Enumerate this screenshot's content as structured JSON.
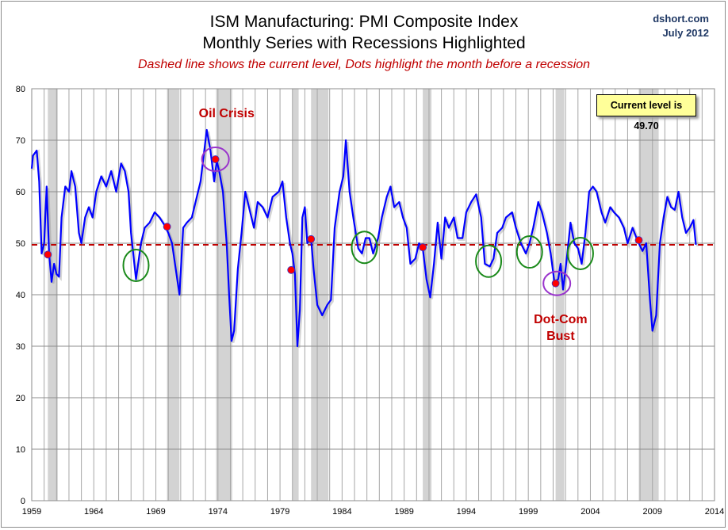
{
  "header": {
    "title": "ISM Manufacturing: PMI Composite Index",
    "subtitle": "Monthly Series with Recessions Highlighted",
    "note": "Dashed line shows the current level, Dots highlight the month before a recession",
    "source": "dshort.com",
    "date": "July 2012"
  },
  "chart_data": {
    "type": "line",
    "title": "ISM Manufacturing: PMI Composite Index",
    "xlim": [
      1959,
      2014
    ],
    "ylim": [
      0,
      80
    ],
    "x_ticks": [
      "1959",
      "1964",
      "1969",
      "1974",
      "1979",
      "1984",
      "1989",
      "1994",
      "1999",
      "2004",
      "2009",
      "2014"
    ],
    "y_ticks": [
      "0",
      "10",
      "20",
      "30",
      "40",
      "50",
      "60",
      "70",
      "80"
    ],
    "grid": true,
    "line_color": "#0000ff",
    "current_level": 49.7,
    "current_level_label": "Current level is 49.70",
    "current_line_color": "#c00000",
    "recession_color": "#d3d3d3",
    "recessions": [
      [
        1960.3,
        1961.1
      ],
      [
        1969.9,
        1970.9
      ],
      [
        1973.85,
        1975.15
      ],
      [
        1980.0,
        1980.5
      ],
      [
        1981.5,
        1982.9
      ],
      [
        1990.5,
        1991.2
      ],
      [
        2001.2,
        2001.9
      ],
      [
        2007.9,
        2009.5
      ]
    ],
    "series": [
      {
        "x": [
          1959.0,
          1959.1,
          1959.4,
          1959.6,
          1959.8,
          1960.0,
          1960.2,
          1960.4,
          1960.6,
          1960.8,
          1961.0,
          1961.2,
          1961.4,
          1961.7,
          1962.0,
          1962.2,
          1962.5,
          1962.8,
          1963.0,
          1963.3,
          1963.6,
          1963.9,
          1964.2,
          1964.6,
          1965.0,
          1965.4,
          1965.8,
          1966.2,
          1966.5,
          1966.8,
          1967.0,
          1967.4,
          1967.8,
          1968.1,
          1968.5,
          1968.9,
          1969.3,
          1969.7,
          1970.0,
          1970.3,
          1970.6,
          1970.9,
          1971.2,
          1971.5,
          1971.9,
          1972.2,
          1972.6,
          1972.9,
          1973.1,
          1973.4,
          1973.7,
          1973.9,
          1974.1,
          1974.4,
          1974.7,
          1974.9,
          1975.1,
          1975.3,
          1975.6,
          1975.9,
          1976.2,
          1976.6,
          1976.9,
          1977.2,
          1977.6,
          1978.0,
          1978.4,
          1978.9,
          1979.2,
          1979.5,
          1979.8,
          1980.0,
          1980.2,
          1980.4,
          1980.6,
          1980.8,
          1981.0,
          1981.2,
          1981.5,
          1981.7,
          1982.0,
          1982.4,
          1982.8,
          1983.1,
          1983.4,
          1983.8,
          1984.1,
          1984.3,
          1984.6,
          1984.9,
          1985.3,
          1985.6,
          1985.9,
          1986.2,
          1986.5,
          1986.9,
          1987.2,
          1987.6,
          1987.9,
          1988.2,
          1988.6,
          1988.9,
          1989.2,
          1989.5,
          1989.9,
          1990.2,
          1990.5,
          1990.8,
          1991.1,
          1991.4,
          1991.7,
          1992.0,
          1992.3,
          1992.6,
          1993.0,
          1993.3,
          1993.7,
          1994.0,
          1994.4,
          1994.8,
          1995.2,
          1995.5,
          1995.9,
          1996.2,
          1996.5,
          1996.9,
          1997.2,
          1997.7,
          1998.0,
          1998.4,
          1998.8,
          1999.1,
          1999.4,
          1999.8,
          2000.1,
          2000.5,
          2000.8,
          2001.1,
          2001.4,
          2001.6,
          2001.8,
          2002.1,
          2002.4,
          2002.7,
          2003.0,
          2003.3,
          2003.6,
          2003.9,
          2004.2,
          2004.5,
          2004.9,
          2005.2,
          2005.6,
          2005.9,
          2006.3,
          2006.7,
          2007.0,
          2007.4,
          2007.8,
          2008.2,
          2008.5,
          2008.8,
          2009.0,
          2009.3,
          2009.6,
          2009.9,
          2010.2,
          2010.5,
          2010.8,
          2011.1,
          2011.4,
          2011.7,
          2012.0,
          2012.3,
          2012.5
        ],
        "y": [
          64.5,
          67,
          68,
          62,
          48,
          50,
          61,
          48,
          42.5,
          46,
          44,
          43.5,
          55,
          61,
          60,
          64,
          61,
          52,
          50,
          55,
          57,
          55,
          60,
          63,
          61,
          64,
          60,
          65.5,
          64,
          60,
          52,
          43,
          50,
          53,
          54,
          56,
          55,
          53.5,
          52,
          50,
          45,
          40,
          53,
          54,
          55,
          58,
          62,
          68,
          72,
          68,
          62,
          66,
          64,
          60,
          50,
          40,
          31,
          33,
          45,
          52,
          60,
          56,
          53,
          58,
          57,
          55,
          59,
          60,
          62,
          55,
          50,
          48,
          44,
          30,
          37,
          55,
          57,
          50,
          51,
          45,
          38,
          36,
          38,
          39,
          53,
          60,
          63,
          70,
          60,
          55,
          49,
          48,
          51,
          51,
          48,
          51,
          55,
          59,
          61,
          57,
          58,
          55,
          53,
          46,
          47,
          50,
          49,
          43,
          39.5,
          46,
          54,
          47,
          55,
          53,
          55,
          51,
          51,
          56,
          58,
          59.5,
          55,
          46,
          45.5,
          47,
          52,
          53,
          55,
          56,
          53,
          50,
          48,
          50,
          53,
          58,
          56,
          52,
          48,
          42.5,
          43,
          46,
          41,
          47,
          54,
          50,
          49,
          46,
          52,
          60,
          61,
          60,
          56,
          54,
          57,
          56,
          55,
          53,
          50,
          53,
          50.5,
          48.5,
          50,
          39,
          33,
          36,
          50,
          55,
          59,
          57,
          56.5,
          60,
          55,
          52,
          53,
          54.5,
          49.7
        ]
      }
    ],
    "pre_recession_dots": [
      [
        1960.3,
        47.8
      ],
      [
        1969.9,
        53.2
      ],
      [
        1973.8,
        66.3
      ],
      [
        1979.9,
        44.8
      ],
      [
        1981.5,
        50.8
      ],
      [
        1990.5,
        49.2
      ],
      [
        2001.2,
        42.2
      ],
      [
        2007.9,
        50.6
      ]
    ],
    "green_circles": [
      [
        1967.4,
        45.7
      ],
      [
        1985.8,
        49.2
      ],
      [
        1995.8,
        46.5
      ],
      [
        1999.1,
        48.3
      ],
      [
        2003.2,
        48
      ]
    ],
    "purple_circles": [
      [
        1973.8,
        66.3
      ],
      [
        2001.3,
        42.2
      ]
    ],
    "annotations": [
      {
        "text": "Oil Crisis",
        "x": 1974.7,
        "y": 74.5
      },
      {
        "text": "Dot-Com",
        "x": 2001.6,
        "y": 34.5
      },
      {
        "text": "Bust",
        "x": 2001.6,
        "y": 31.2
      }
    ]
  }
}
